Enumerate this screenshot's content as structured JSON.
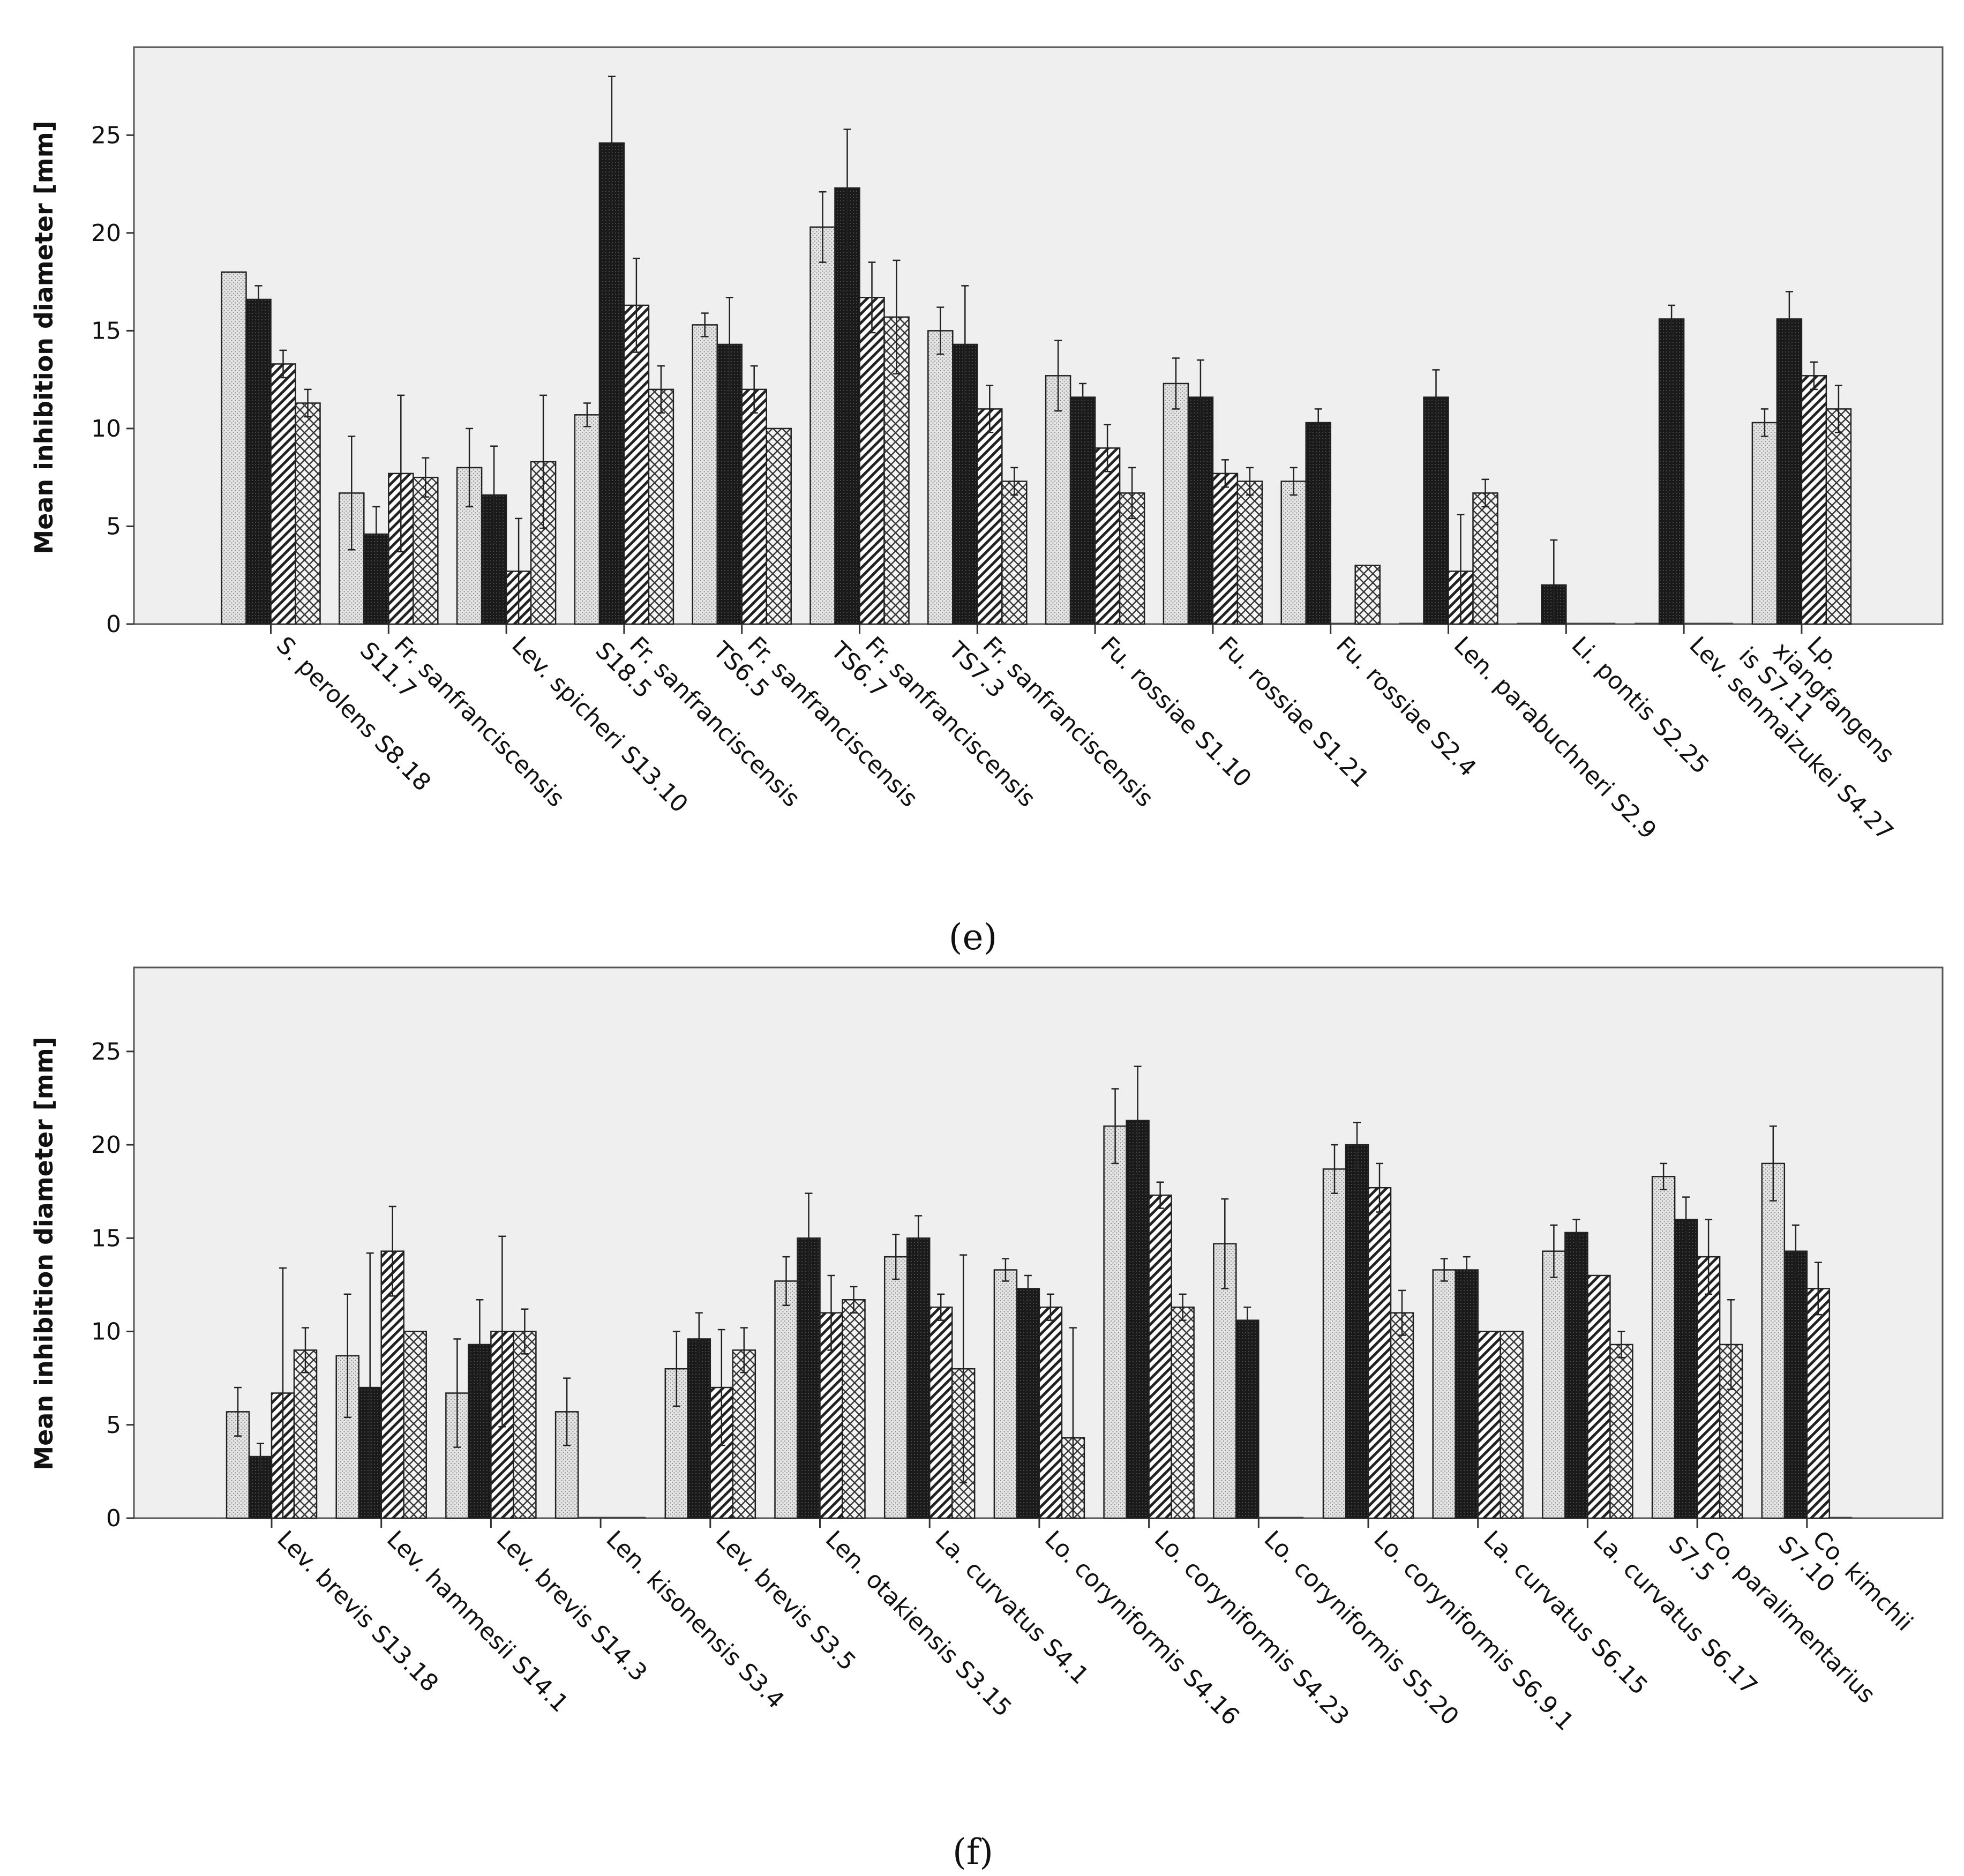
{
  "chart_data": [
    {
      "panel": "(e)",
      "type": "bar",
      "ylabel": "Mean inhibition diameter [mm]",
      "xlabel": "",
      "ylim": [
        0,
        29.5
      ],
      "yticks": [
        0,
        5,
        10,
        15,
        20,
        25
      ],
      "series_patterns": [
        "dots",
        "dark",
        "hatch",
        "crosshatch"
      ],
      "colors": {
        "plot_bg": "#efefef",
        "bar_stroke": "#222222",
        "light": "#e3e3e3",
        "dark": "#1c1c1c"
      },
      "categories": [
        [
          "S. perolens S8.18"
        ],
        [
          "Fr. sanfranciscensis",
          "S11.7"
        ],
        [
          "Lev. spicheri S13.10"
        ],
        [
          "Fr. sanfranciscensis",
          "S18.5"
        ],
        [
          "Fr. sanfranciscensis",
          "TS6.5"
        ],
        [
          "Fr. sanfranciscensis",
          "TS6.7"
        ],
        [
          "Fr. sanfranciscensis",
          "TS7.3"
        ],
        [
          "Fu. rossiae S1.10"
        ],
        [
          "Fu. rossiae S1.21"
        ],
        [
          "Fu. rossiae S2.4"
        ],
        [
          "Len. parabuchneri S2.9"
        ],
        [
          "Li. pontis S2.25"
        ],
        [
          "Lev. senmaizukei S4.27"
        ],
        [
          "Lp.",
          "xiangfangens",
          "is S7.11"
        ]
      ],
      "values": [
        [
          18.0,
          16.6,
          13.3,
          11.3
        ],
        [
          6.7,
          4.6,
          7.7,
          7.5
        ],
        [
          8.0,
          6.6,
          2.7,
          8.3
        ],
        [
          10.7,
          24.6,
          16.3,
          12.0
        ],
        [
          15.3,
          14.3,
          12.0,
          10.0
        ],
        [
          20.3,
          22.3,
          16.7,
          15.7
        ],
        [
          15.0,
          14.3,
          11.0,
          7.3
        ],
        [
          12.7,
          11.6,
          9.0,
          6.7
        ],
        [
          12.3,
          11.6,
          7.7,
          7.3
        ],
        [
          7.3,
          10.3,
          0,
          3.0
        ],
        [
          0,
          11.6,
          2.7,
          6.7
        ],
        [
          0,
          2.0,
          0,
          0
        ],
        [
          0,
          15.6,
          0,
          0
        ],
        [
          10.3,
          15.6,
          12.7,
          11.0
        ]
      ],
      "errors": [
        [
          0,
          0.7,
          0.7,
          0.7
        ],
        [
          2.9,
          1.4,
          4.0,
          1.0
        ],
        [
          2.0,
          2.5,
          2.7,
          3.4
        ],
        [
          0.6,
          3.4,
          2.4,
          1.2
        ],
        [
          0.6,
          2.4,
          1.2,
          0
        ],
        [
          1.8,
          3.0,
          1.8,
          2.9
        ],
        [
          1.2,
          3.0,
          1.2,
          0.7
        ],
        [
          1.8,
          0.7,
          1.2,
          1.3
        ],
        [
          1.3,
          1.9,
          0.7,
          0.7
        ],
        [
          0.7,
          0.7,
          0,
          0
        ],
        [
          0,
          1.4,
          2.9,
          0.7
        ],
        [
          0,
          2.3,
          0,
          0
        ],
        [
          0,
          0.7,
          0,
          0
        ],
        [
          0.7,
          1.4,
          0.7,
          1.2
        ]
      ]
    },
    {
      "panel": "(f)",
      "type": "bar",
      "ylabel": "Mean inhibition diameter [mm]",
      "xlabel": "",
      "ylim": [
        0,
        29.5
      ],
      "yticks": [
        0,
        5,
        10,
        15,
        20,
        25
      ],
      "series_patterns": [
        "dots",
        "dark",
        "hatch",
        "crosshatch"
      ],
      "colors": {
        "plot_bg": "#efefef",
        "bar_stroke": "#222222",
        "light": "#e3e3e3",
        "dark": "#1c1c1c"
      },
      "categories": [
        [
          "Lev. brevis S13.18"
        ],
        [
          "Lev. hammesii S14.1"
        ],
        [
          "Lev. brevis S14.3"
        ],
        [
          "Len. kisonensis S3.4"
        ],
        [
          "Lev. brevis S3.5"
        ],
        [
          "Len. otakiensis S3.15"
        ],
        [
          "La. curvatus S4.1"
        ],
        [
          "Lo. coryniformis S4.16"
        ],
        [
          "Lo. coryniformis S4.23"
        ],
        [
          "Lo. coryniformis S5.20"
        ],
        [
          "Lo. coryniformis S6.9.1"
        ],
        [
          "La. curvatus S6.15"
        ],
        [
          "La. curvatus S6.17"
        ],
        [
          "Co. paralimentarius",
          "S7.5"
        ],
        [
          "Co. kimchii",
          "S7.10"
        ]
      ],
      "values": [
        [
          5.7,
          3.3,
          6.7,
          9.0
        ],
        [
          8.7,
          7.0,
          14.3,
          10.0
        ],
        [
          6.7,
          9.3,
          10.0,
          10.0
        ],
        [
          5.7,
          0,
          0,
          0
        ],
        [
          8.0,
          9.6,
          7.0,
          9.0
        ],
        [
          12.7,
          15.0,
          11.0,
          11.7
        ],
        [
          14.0,
          15.0,
          11.3,
          8.0
        ],
        [
          13.3,
          12.3,
          11.3,
          4.3
        ],
        [
          21.0,
          21.3,
          17.3,
          11.3
        ],
        [
          14.7,
          10.6,
          0,
          0
        ],
        [
          18.7,
          20.0,
          17.7,
          11.0
        ],
        [
          13.3,
          13.3,
          10.0,
          10.0
        ],
        [
          14.3,
          15.3,
          13.0,
          9.3
        ],
        [
          18.3,
          16.0,
          14.0,
          9.3
        ],
        [
          19.0,
          14.3,
          12.3,
          0
        ]
      ],
      "errors": [
        [
          1.3,
          0.7,
          6.7,
          1.2
        ],
        [
          3.3,
          7.2,
          2.4,
          0
        ],
        [
          2.9,
          2.4,
          5.1,
          1.2
        ],
        [
          1.8,
          0,
          0,
          0
        ],
        [
          2.0,
          1.4,
          3.1,
          1.2
        ],
        [
          1.3,
          2.4,
          2.0,
          0.7
        ],
        [
          1.2,
          1.2,
          0.7,
          6.1
        ],
        [
          0.6,
          0.7,
          0.7,
          5.9
        ],
        [
          2.0,
          2.9,
          0.7,
          0.7
        ],
        [
          2.4,
          0.7,
          0,
          0
        ],
        [
          1.3,
          1.2,
          1.3,
          1.2
        ],
        [
          0.6,
          0.7,
          0,
          0
        ],
        [
          1.4,
          0.7,
          0,
          0.7
        ],
        [
          0.7,
          1.2,
          2.0,
          2.4
        ],
        [
          2.0,
          1.4,
          1.4,
          0
        ]
      ]
    }
  ]
}
